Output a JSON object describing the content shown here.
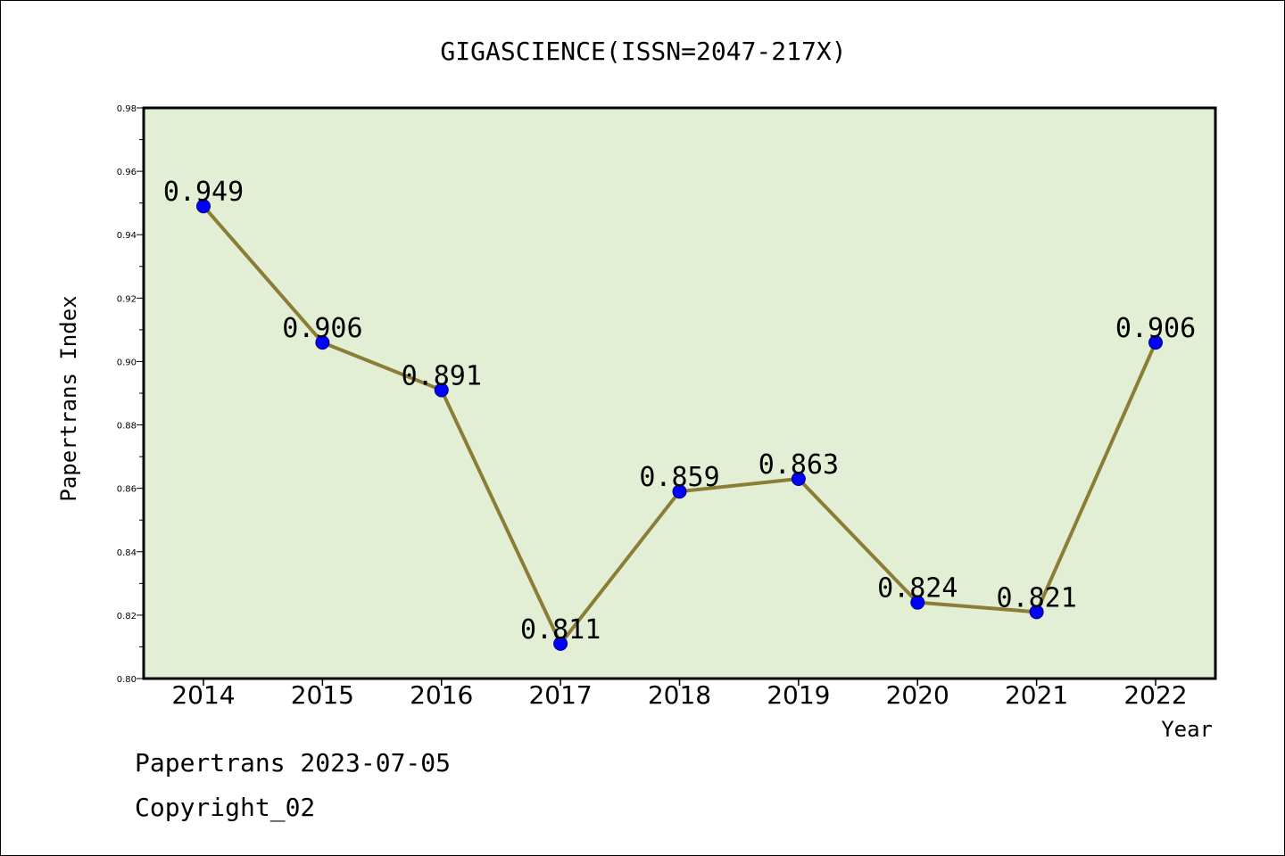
{
  "chart_data": {
    "type": "line",
    "title": "GIGASCIENCE(ISSN=2047-217X)",
    "xlabel": "Year",
    "ylabel": "Papertrans Index",
    "x": [
      "2014",
      "2015",
      "2016",
      "2017",
      "2018",
      "2019",
      "2020",
      "2021",
      "2022"
    ],
    "series": [
      {
        "values": [
          0.949,
          0.906,
          0.891,
          0.811,
          0.859,
          0.863,
          0.824,
          0.821,
          0.906
        ],
        "labels": [
          "0.949",
          "0.906",
          "0.891",
          "0.811",
          "0.859",
          "0.863",
          "0.824",
          "0.821",
          "0.906"
        ]
      }
    ],
    "ylim": [
      0.8,
      0.98
    ],
    "yticks": [
      "0.80",
      "0.82",
      "0.84",
      "0.86",
      "0.88",
      "0.90",
      "0.92",
      "0.94",
      "0.96",
      "0.98"
    ],
    "grid": false,
    "legend": "none"
  },
  "footer": {
    "line1": "Papertrans 2023-07-05",
    "line2": "Copyright_02"
  },
  "colors": {
    "plot_bg": "#e2efd5",
    "line": "#8b7d36",
    "marker": "#0000ff",
    "axis": "#000000"
  }
}
